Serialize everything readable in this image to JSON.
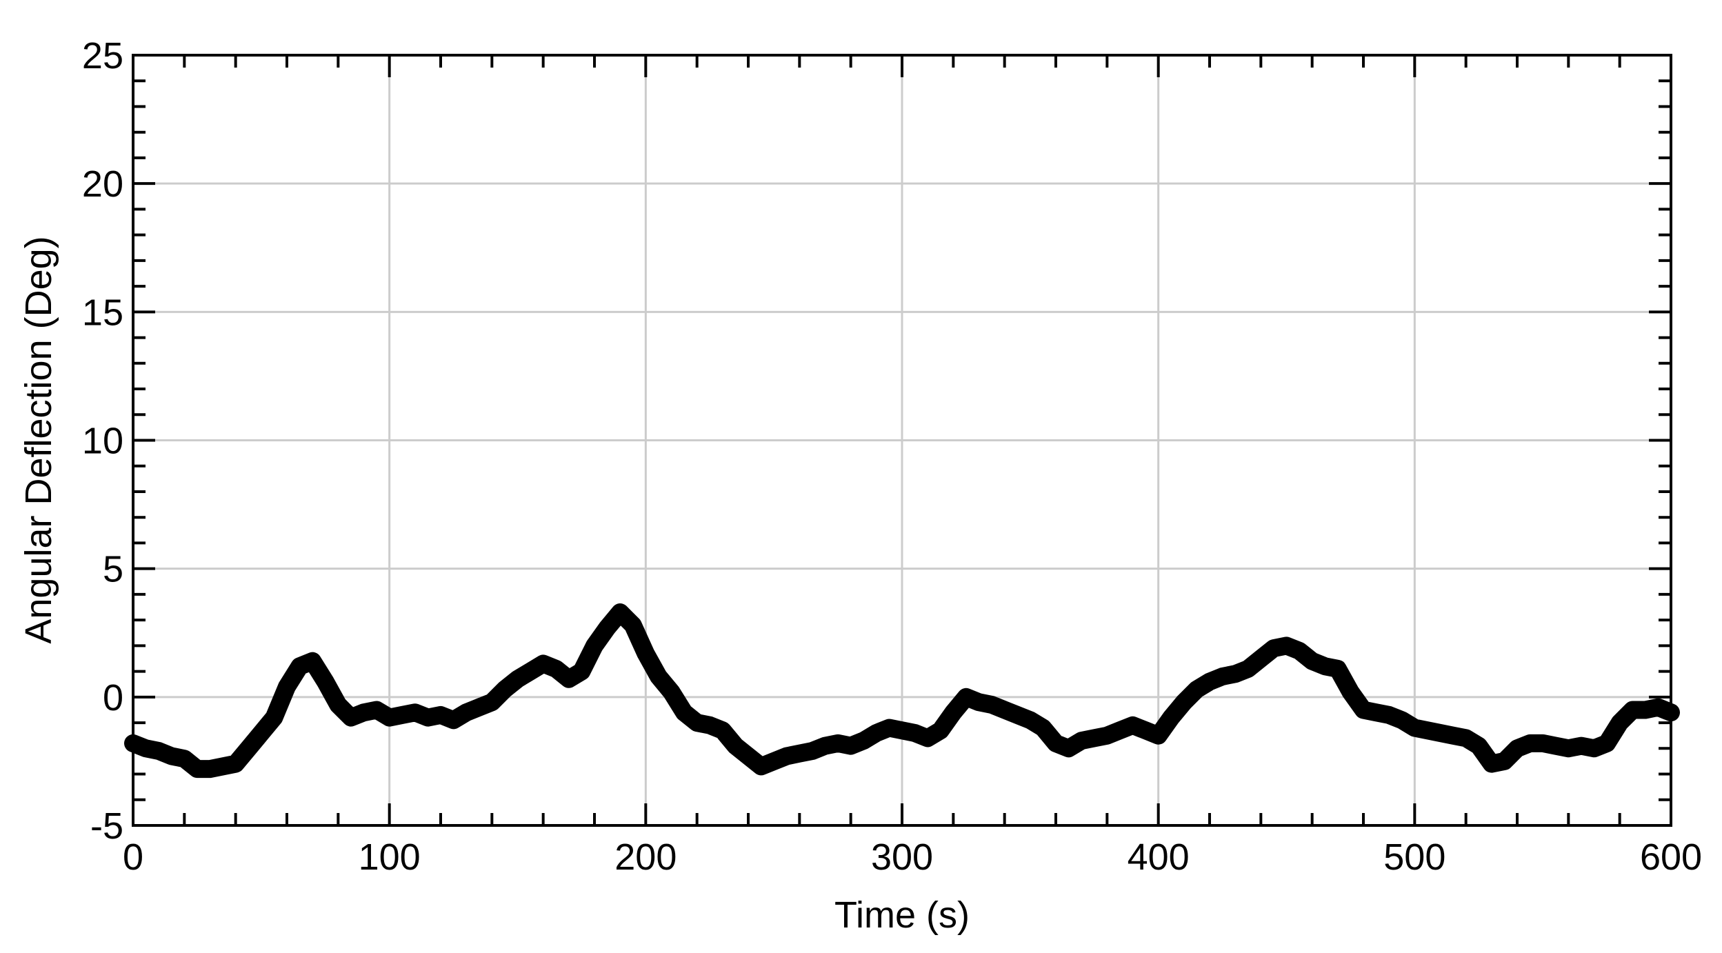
{
  "chart_data": {
    "type": "line",
    "title": "",
    "xlabel": "Time (s)",
    "ylabel": "Angular Deflection (Deg)",
    "xlim": [
      0,
      600
    ],
    "ylim": [
      -5,
      25
    ],
    "xticks": [
      0,
      100,
      200,
      300,
      400,
      500,
      600
    ],
    "yticks": [
      -5,
      0,
      5,
      10,
      15,
      20,
      25
    ],
    "grid": true,
    "legend": "none",
    "line_color": "#000000",
    "grid_color": "#cccccc",
    "series": [
      {
        "x": [
          0,
          5,
          10,
          15,
          20,
          25,
          30,
          35,
          40,
          45,
          50,
          55,
          60,
          65,
          70,
          75,
          80,
          85,
          90,
          95,
          100,
          105,
          110,
          115,
          120,
          125,
          130,
          135,
          140,
          145,
          150,
          155,
          160,
          165,
          170,
          175,
          180,
          185,
          190,
          195,
          200,
          205,
          210,
          215,
          220,
          225,
          230,
          235,
          240,
          245,
          250,
          255,
          260,
          265,
          270,
          275,
          280,
          285,
          290,
          295,
          300,
          305,
          310,
          315,
          320,
          325,
          330,
          335,
          340,
          345,
          350,
          355,
          360,
          365,
          370,
          375,
          380,
          385,
          390,
          395,
          400,
          405,
          410,
          415,
          420,
          425,
          430,
          435,
          440,
          445,
          450,
          455,
          460,
          465,
          470,
          475,
          480,
          485,
          490,
          495,
          500,
          505,
          510,
          515,
          520,
          525,
          530,
          535,
          540,
          545,
          550,
          555,
          560,
          565,
          570,
          575,
          580,
          585,
          590,
          595,
          600
        ],
        "y": [
          -1.8,
          -2.0,
          -2.1,
          -2.3,
          -2.4,
          -2.8,
          -2.8,
          -2.7,
          -2.6,
          -2.0,
          -1.4,
          -0.8,
          0.4,
          1.2,
          1.4,
          0.6,
          -0.3,
          -0.8,
          -0.6,
          -0.5,
          -0.8,
          -0.7,
          -0.6,
          -0.8,
          -0.7,
          -0.9,
          -0.6,
          -0.4,
          -0.2,
          0.3,
          0.7,
          1.0,
          1.3,
          1.1,
          0.7,
          1.0,
          2.0,
          2.7,
          3.3,
          2.8,
          1.7,
          0.8,
          0.2,
          -0.6,
          -1.0,
          -1.1,
          -1.3,
          -1.9,
          -2.3,
          -2.7,
          -2.5,
          -2.3,
          -2.2,
          -2.1,
          -1.9,
          -1.8,
          -1.9,
          -1.7,
          -1.4,
          -1.2,
          -1.3,
          -1.4,
          -1.6,
          -1.3,
          -0.6,
          0.0,
          -0.2,
          -0.3,
          -0.5,
          -0.7,
          -0.9,
          -1.2,
          -1.8,
          -2.0,
          -1.7,
          -1.6,
          -1.5,
          -1.3,
          -1.1,
          -1.3,
          -1.5,
          -0.8,
          -0.2,
          0.3,
          0.6,
          0.8,
          0.9,
          1.1,
          1.5,
          1.9,
          2.0,
          1.8,
          1.4,
          1.2,
          1.1,
          0.2,
          -0.5,
          -0.6,
          -0.7,
          -0.9,
          -1.2,
          -1.3,
          -1.4,
          -1.5,
          -1.6,
          -1.9,
          -2.6,
          -2.5,
          -2.0,
          -1.8,
          -1.8,
          -1.9,
          -2.0,
          -1.9,
          -2.0,
          -1.8,
          -1.0,
          -0.5,
          -0.5,
          -0.4,
          -0.6
        ]
      }
    ]
  }
}
